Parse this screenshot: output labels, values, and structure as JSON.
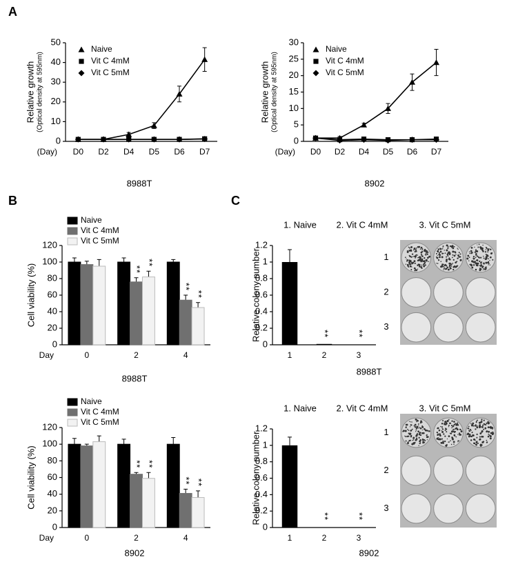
{
  "panels": [
    "A",
    "B",
    "C"
  ],
  "chart_data": [
    {
      "type": "line",
      "title": "8988T",
      "ylabel": "Relative growth",
      "ylabel_sub": "(Optical density at 595nm)",
      "xlabel": "(Day)",
      "categories": [
        "D0",
        "D2",
        "D4",
        "D5",
        "D6",
        "D7"
      ],
      "ylim": [
        0,
        50
      ],
      "yticks": [
        0,
        10,
        20,
        30,
        40,
        50
      ],
      "series": [
        {
          "name": "Naive",
          "color": "#000000",
          "marker": "triangle",
          "values": [
            1,
            1,
            3.5,
            8,
            24,
            41.5
          ],
          "errors": [
            0.3,
            0.3,
            1,
            1.5,
            4,
            6
          ]
        },
        {
          "name": "Vit C 4mM",
          "color": "#000000",
          "marker": "square",
          "values": [
            1,
            1,
            1,
            1,
            1,
            1.3
          ],
          "errors": [
            0.2,
            0.2,
            0.2,
            0.2,
            0.2,
            0.3
          ]
        },
        {
          "name": "Vit C 5mM",
          "color": "#000000",
          "marker": "diamond",
          "values": [
            1,
            1,
            1,
            1,
            1,
            1.2
          ],
          "errors": [
            0.2,
            0.2,
            0.2,
            0.2,
            0.2,
            0.3
          ]
        }
      ]
    },
    {
      "type": "line",
      "title": "8902",
      "ylabel": "Relative growth",
      "ylabel_sub": "(Optical density at 595nm)",
      "xlabel": "(Day)",
      "categories": [
        "D0",
        "D2",
        "D4",
        "D5",
        "D6",
        "D7"
      ],
      "ylim": [
        0,
        30
      ],
      "yticks": [
        0,
        5,
        10,
        15,
        20,
        25,
        30
      ],
      "series": [
        {
          "name": "Naive",
          "color": "#000000",
          "marker": "triangle",
          "values": [
            1,
            1,
            5,
            10,
            18,
            24
          ],
          "errors": [
            0.5,
            0.5,
            0.5,
            1.5,
            2.5,
            4
          ]
        },
        {
          "name": "Vit C 4mM",
          "color": "#000000",
          "marker": "square",
          "values": [
            1,
            0.5,
            0.7,
            0.5,
            0.5,
            0.7
          ],
          "errors": [
            0.2,
            0.2,
            0.2,
            0.2,
            0.2,
            0.2
          ]
        },
        {
          "name": "Vit C 5mM",
          "color": "#000000",
          "marker": "diamond",
          "values": [
            1,
            0.3,
            0.5,
            0.3,
            0.5,
            0.5
          ],
          "errors": [
            0.2,
            0.2,
            0.2,
            0.2,
            0.2,
            0.2
          ]
        }
      ]
    },
    {
      "type": "bar",
      "title": "8988T",
      "ylabel": "Cell viability (%)",
      "xlabel": "Day",
      "categories": [
        "0",
        "2",
        "4"
      ],
      "ylim": [
        0,
        120
      ],
      "yticks": [
        0,
        20,
        40,
        60,
        80,
        100,
        120
      ],
      "series": [
        {
          "name": "Naive",
          "color": "#000000",
          "values": [
            100,
            100,
            100
          ],
          "errors": [
            5,
            5,
            3
          ]
        },
        {
          "name": "Vit C 4mM",
          "color": "#707070",
          "values": [
            97,
            76,
            54
          ],
          "errors": [
            4,
            5,
            6
          ]
        },
        {
          "name": "Vit C 5mM",
          "color": "#f2f2f2",
          "values": [
            95,
            82,
            45
          ],
          "errors": [
            8,
            7,
            6
          ]
        }
      ],
      "annotations": [
        {
          "text": "**",
          "series": 1,
          "category": 1
        },
        {
          "text": "**",
          "series": 2,
          "category": 1
        },
        {
          "text": "**",
          "series": 1,
          "category": 2
        },
        {
          "text": "**",
          "series": 2,
          "category": 2
        }
      ]
    },
    {
      "type": "bar",
      "title": "8902",
      "ylabel": "Cell viability (%)",
      "xlabel": "Day",
      "categories": [
        "0",
        "2",
        "4"
      ],
      "ylim": [
        0,
        120
      ],
      "yticks": [
        0,
        20,
        40,
        60,
        80,
        100,
        120
      ],
      "series": [
        {
          "name": "Naive",
          "color": "#000000",
          "values": [
            100,
            100,
            100
          ],
          "errors": [
            7,
            6,
            8
          ]
        },
        {
          "name": "Vit C 4mM",
          "color": "#707070",
          "values": [
            98,
            64,
            41
          ],
          "errors": [
            2,
            2,
            5
          ]
        },
        {
          "name": "Vit C 5mM",
          "color": "#f2f2f2",
          "values": [
            103,
            59,
            36
          ],
          "errors": [
            7,
            7,
            8
          ]
        }
      ],
      "annotations": [
        {
          "text": "**",
          "series": 1,
          "category": 1
        },
        {
          "text": "**",
          "series": 2,
          "category": 1
        },
        {
          "text": "**",
          "series": 1,
          "category": 2
        },
        {
          "text": "**",
          "series": 2,
          "category": 2
        }
      ]
    },
    {
      "type": "bar",
      "title": "8988T",
      "ylabel": "Relative colony number",
      "headers": [
        "1. Naive",
        "2. Vit C 4mM",
        "3. Vit C 5mM"
      ],
      "categories": [
        "1",
        "2",
        "3"
      ],
      "ylim": [
        0,
        1.2
      ],
      "yticks": [
        0,
        0.2,
        0.4,
        0.6,
        0.8,
        1,
        1.2
      ],
      "values": [
        1,
        0.01,
        0
      ],
      "errors": [
        0.15,
        0,
        0
      ],
      "color": "#000000",
      "annotations": [
        {
          "text": "**",
          "category": 1
        },
        {
          "text": "**",
          "category": 2
        }
      ],
      "plate_rows": [
        "1",
        "2",
        "3"
      ]
    },
    {
      "type": "bar",
      "title": "8902",
      "ylabel": "Relative colony number",
      "headers": [
        "1. Naive",
        "2. Vit C 4mM",
        "3. Vit C 5mM"
      ],
      "categories": [
        "1",
        "2",
        "3"
      ],
      "ylim": [
        0,
        1.2
      ],
      "yticks": [
        0,
        0.2,
        0.4,
        0.6,
        0.8,
        1,
        1.2
      ],
      "values": [
        1,
        0,
        0
      ],
      "errors": [
        0.1,
        0,
        0
      ],
      "color": "#000000",
      "annotations": [
        {
          "text": "**",
          "category": 1
        },
        {
          "text": "**",
          "category": 2
        }
      ],
      "plate_rows": [
        "1",
        "2",
        "3"
      ]
    }
  ]
}
